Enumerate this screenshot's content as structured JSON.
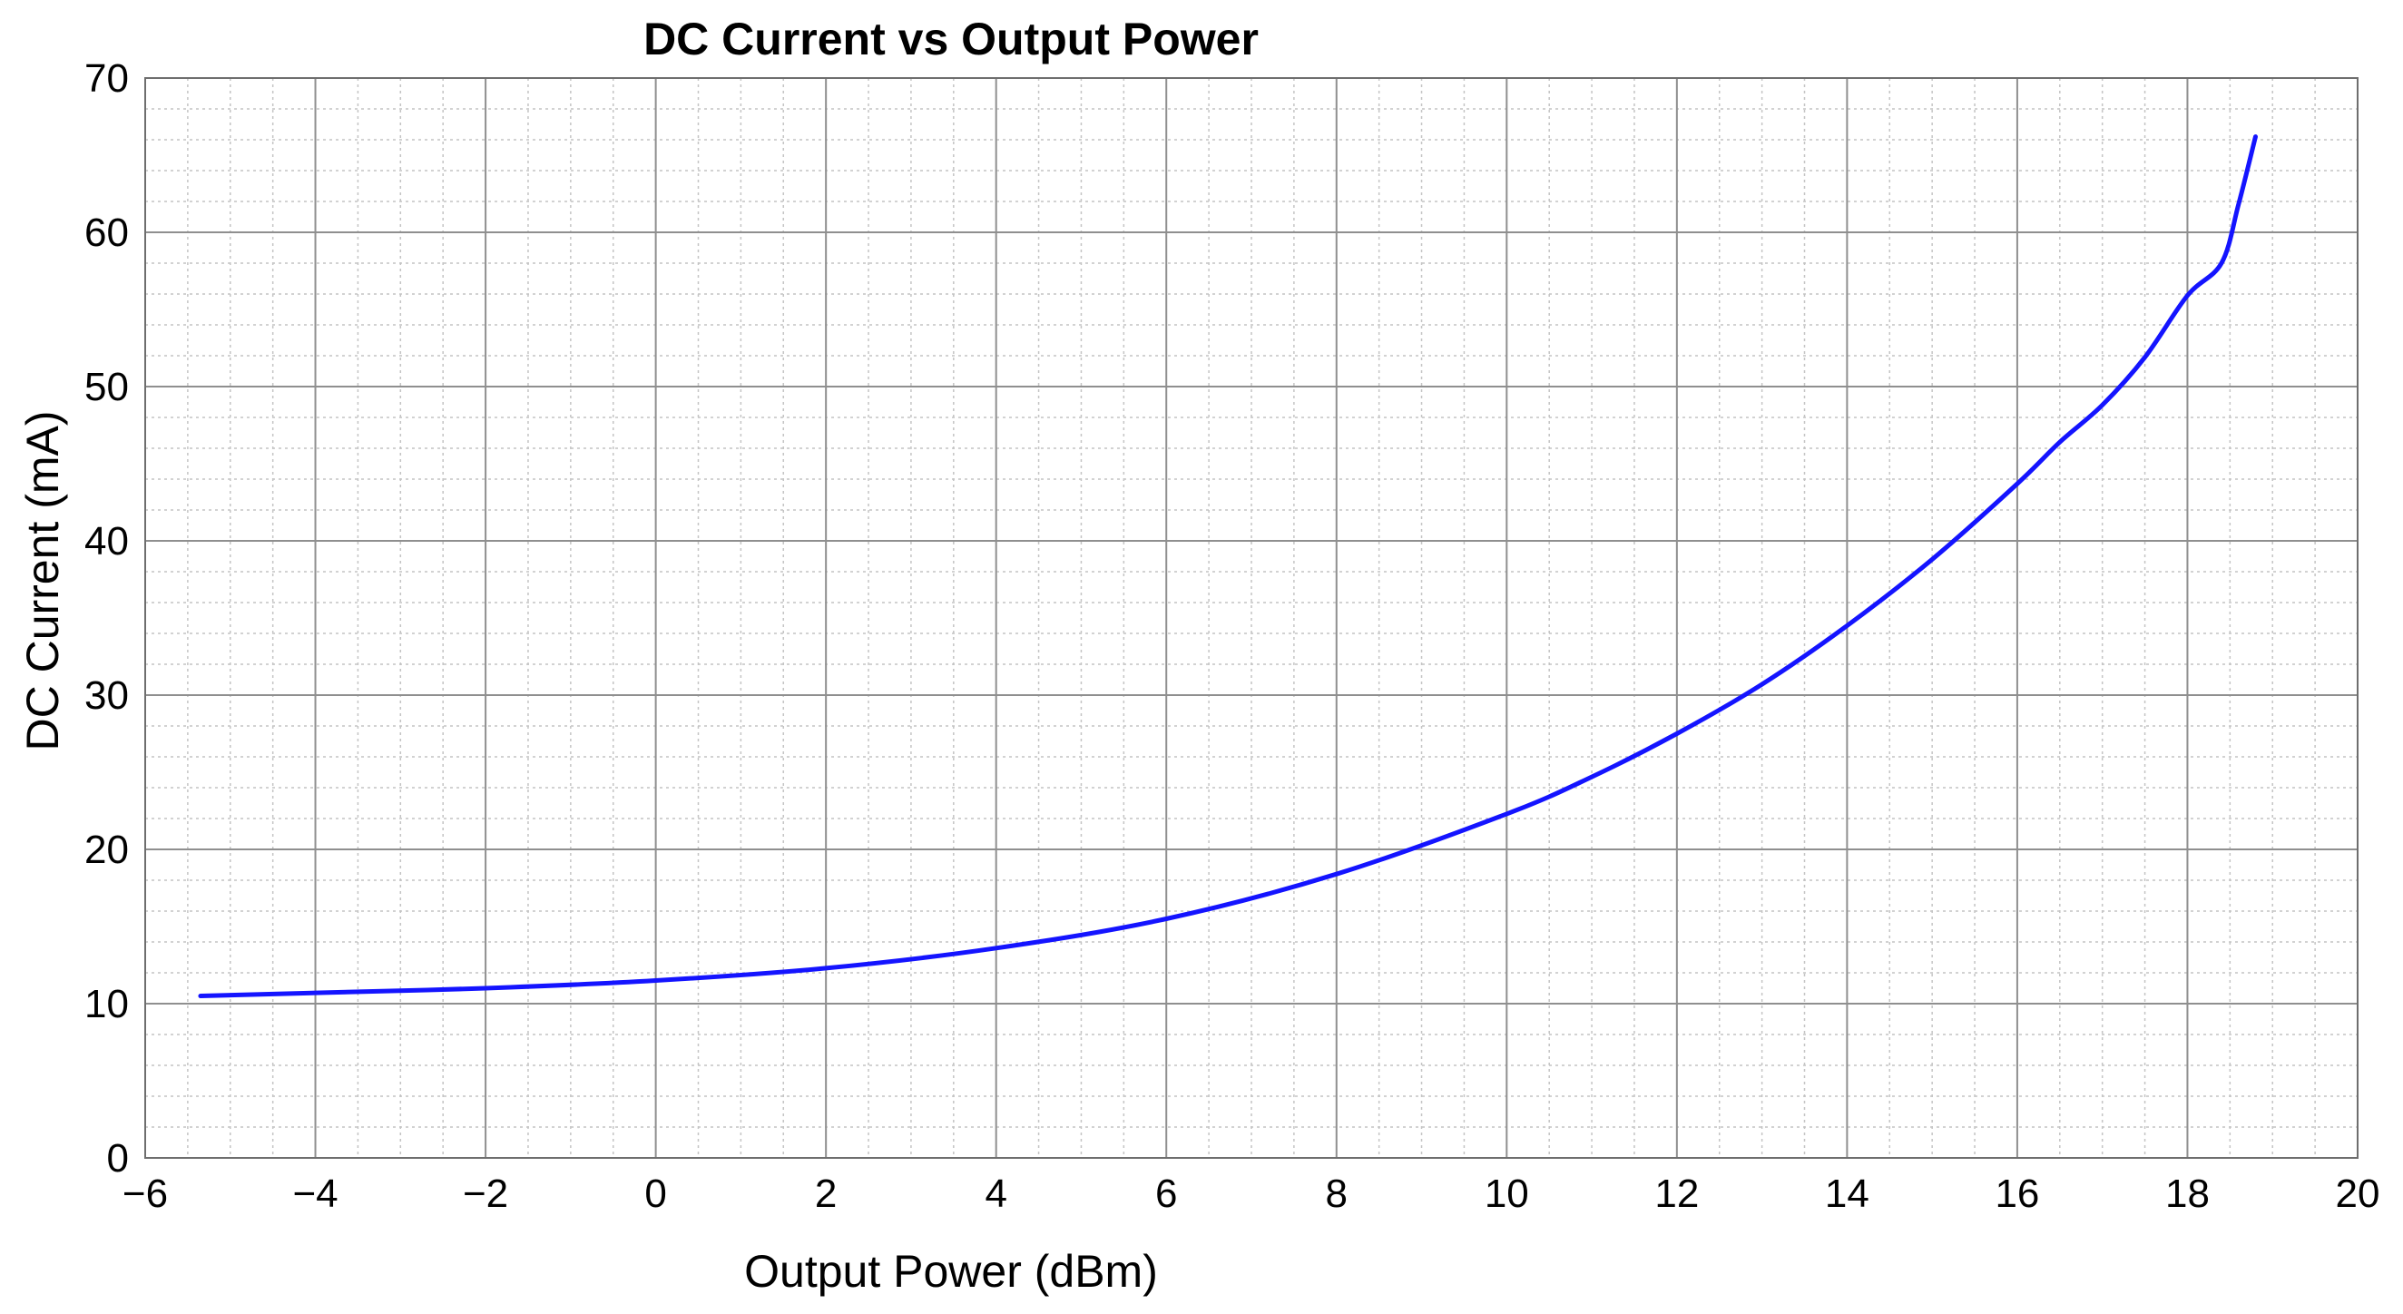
{
  "chart_data": {
    "type": "line",
    "title": "DC Current vs Output Power",
    "xlabel": "Output Power (dBm)",
    "ylabel": "DC Current (mA)",
    "xlim": [
      -6,
      20
    ],
    "ylim": [
      0,
      70
    ],
    "x_ticks": [
      -6,
      -4,
      -2,
      0,
      2,
      4,
      6,
      8,
      10,
      12,
      14,
      16,
      18,
      20
    ],
    "x_tick_labels": [
      "−6",
      "−4",
      "−2",
      "0",
      "2",
      "4",
      "6",
      "8",
      "10",
      "12",
      "14",
      "16",
      "18",
      "20"
    ],
    "y_ticks": [
      0,
      10,
      20,
      30,
      40,
      50,
      60,
      70
    ],
    "y_tick_labels": [
      "0",
      "10",
      "20",
      "30",
      "40",
      "50",
      "60",
      "70"
    ],
    "grid": true,
    "minor_grid": true,
    "legend": "none",
    "series": [
      {
        "color": "#1414ff",
        "x": [
          -5.35,
          -4,
          -2,
          0,
          2,
          4,
          6,
          8,
          10,
          11,
          12,
          13,
          14,
          15,
          16,
          16.5,
          17,
          17.5,
          18,
          18.4,
          18.6,
          18.8
        ],
        "y": [
          10.5,
          10.7,
          11.0,
          11.5,
          12.3,
          13.6,
          15.5,
          18.4,
          22.3,
          24.7,
          27.5,
          30.7,
          34.5,
          38.8,
          43.7,
          46.4,
          48.8,
          51.9,
          55.9,
          58.0,
          61.8,
          66.2
        ]
      }
    ]
  }
}
